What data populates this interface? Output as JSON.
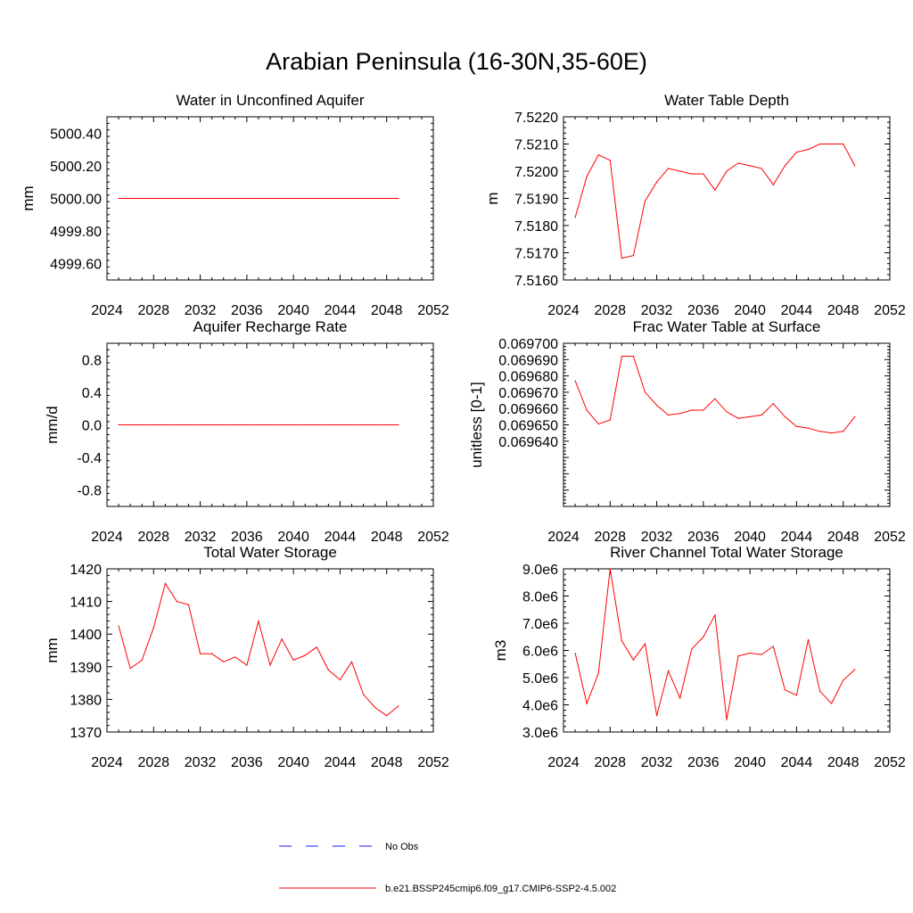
{
  "title": "Arabian Peninsula (16-30N,35-60E)",
  "legend": {
    "entries": [
      {
        "label": "No Obs",
        "color": "#1a1aff",
        "dash": true
      },
      {
        "label": "b.e21.BSSP245cmip6.f09_g17.CMIP6-SSP2-4.5.002",
        "color": "#ff0000",
        "dash": false
      }
    ]
  },
  "chart_data": [
    {
      "type": "line",
      "title": "Water in Unconfined Aquifer",
      "ylabel": "mm",
      "xlim": [
        2024,
        2052
      ],
      "ylim": [
        4999.5,
        5000.5
      ],
      "x_ticks": [
        "2024",
        "2028",
        "2032",
        "2036",
        "2040",
        "2044",
        "2048",
        "2052"
      ],
      "y_ticks": [
        "4999.60",
        "4999.80",
        "5000.00",
        "5000.20",
        "5000.40"
      ],
      "series": [
        {
          "color": "#ff0000",
          "x": [
            2025,
            2026,
            2027,
            2028,
            2029,
            2030,
            2031,
            2032,
            2033,
            2034,
            2035,
            2036,
            2037,
            2038,
            2039,
            2040,
            2041,
            2042,
            2043,
            2044,
            2045,
            2046,
            2047,
            2048,
            2049
          ],
          "values": [
            5000,
            5000,
            5000,
            5000,
            5000,
            5000,
            5000,
            5000,
            5000,
            5000,
            5000,
            5000,
            5000,
            5000,
            5000,
            5000,
            5000,
            5000,
            5000,
            5000,
            5000,
            5000,
            5000,
            5000,
            5000
          ]
        }
      ]
    },
    {
      "type": "line",
      "title": "Water Table Depth",
      "ylabel": "m",
      "xlim": [
        2024,
        2052
      ],
      "ylim": [
        7.516,
        7.522
      ],
      "x_ticks": [
        "2024",
        "2028",
        "2032",
        "2036",
        "2040",
        "2044",
        "2048",
        "2052"
      ],
      "y_ticks": [
        "7.5160",
        "7.5170",
        "7.5180",
        "7.5190",
        "7.5200",
        "7.5210",
        "7.5220"
      ],
      "series": [
        {
          "color": "#ff0000",
          "x": [
            2025,
            2026,
            2027,
            2028,
            2029,
            2030,
            2031,
            2032,
            2033,
            2034,
            2035,
            2036,
            2037,
            2038,
            2039,
            2040,
            2041,
            2042,
            2043,
            2044,
            2045,
            2046,
            2047,
            2048,
            2049
          ],
          "values": [
            7.5183,
            7.5198,
            7.5206,
            7.5204,
            7.5168,
            7.5169,
            7.5189,
            7.5196,
            7.5201,
            7.52,
            7.5199,
            7.5199,
            7.5193,
            7.52,
            7.5203,
            7.5202,
            7.5201,
            7.5195,
            7.5202,
            7.5207,
            7.5208,
            7.521,
            7.521,
            7.521,
            7.5202
          ]
        }
      ]
    },
    {
      "type": "line",
      "title": "Aquifer Recharge Rate",
      "ylabel": "mm/d",
      "xlim": [
        2024,
        2052
      ],
      "ylim": [
        -1,
        1
      ],
      "x_ticks": [
        "2024",
        "2028",
        "2032",
        "2036",
        "2040",
        "2044",
        "2048",
        "2052"
      ],
      "y_ticks": [
        "-0.8",
        "-0.4",
        "0.0",
        "0.4",
        "0.8"
      ],
      "series": [
        {
          "color": "#ff0000",
          "x": [
            2025,
            2026,
            2027,
            2028,
            2029,
            2030,
            2031,
            2032,
            2033,
            2034,
            2035,
            2036,
            2037,
            2038,
            2039,
            2040,
            2041,
            2042,
            2043,
            2044,
            2045,
            2046,
            2047,
            2048,
            2049
          ],
          "values": [
            0,
            0,
            0,
            0,
            0,
            0,
            0,
            0,
            0,
            0,
            0,
            0,
            0,
            0,
            0,
            0,
            0,
            0,
            0,
            0,
            0,
            0,
            0,
            0,
            0
          ]
        }
      ]
    },
    {
      "type": "line",
      "title": "Frac Water Table at Surface",
      "ylabel": "unitless [0-1]",
      "xlim": [
        2024,
        2052
      ],
      "ylim": [
        0.0696,
        0.0697
      ],
      "x_ticks": [
        "2024",
        "2028",
        "2032",
        "2036",
        "2040",
        "2044",
        "2048",
        "2052"
      ],
      "y_ticks": [
        "0.069640",
        "0.069650",
        "0.069660",
        "0.069670",
        "0.069680",
        "0.069690",
        "0.069700"
      ],
      "series": [
        {
          "color": "#ff0000",
          "x": [
            2025,
            2026,
            2027,
            2028,
            2029,
            2030,
            2031,
            2032,
            2033,
            2034,
            2035,
            2036,
            2037,
            2038,
            2039,
            2040,
            2041,
            2042,
            2043,
            2044,
            2045,
            2046,
            2047,
            2048,
            2049
          ],
          "values": [
            0.069677,
            0.069659,
            0.0696505,
            0.069653,
            0.069692,
            0.069692,
            0.06967,
            0.069662,
            0.069656,
            0.069657,
            0.069659,
            0.069659,
            0.069666,
            0.069658,
            0.069654,
            0.069655,
            0.069656,
            0.069663,
            0.069655,
            0.069649,
            0.069648,
            0.069646,
            0.069645,
            0.069646,
            0.069655
          ]
        }
      ]
    },
    {
      "type": "line",
      "title": "Total Water Storage",
      "ylabel": "mm",
      "xlim": [
        2024,
        2052
      ],
      "ylim": [
        1370,
        1420
      ],
      "x_ticks": [
        "2024",
        "2028",
        "2032",
        "2036",
        "2040",
        "2044",
        "2048",
        "2052"
      ],
      "y_ticks": [
        "1370",
        "1380",
        "1390",
        "1400",
        "1410",
        "1420"
      ],
      "series": [
        {
          "color": "#ff0000",
          "x": [
            2025,
            2026,
            2027,
            2028,
            2029,
            2030,
            2031,
            2032,
            2033,
            2034,
            2035,
            2036,
            2037,
            2038,
            2039,
            2040,
            2041,
            2042,
            2043,
            2044,
            2045,
            2046,
            2047,
            2048,
            2049
          ],
          "values": [
            1402.5,
            1389.5,
            1392,
            1402,
            1415.5,
            1410,
            1409,
            1394,
            1394,
            1391.5,
            1393,
            1390.5,
            1404,
            1390.5,
            1398.5,
            1392,
            1393.5,
            1396,
            1389,
            1386,
            1391.5,
            1381.5,
            1377.5,
            1375,
            1378
          ]
        }
      ]
    },
    {
      "type": "line",
      "title": "River Channel Total Water Storage",
      "ylabel": "m3",
      "xlim": [
        2024,
        2052
      ],
      "ylim": [
        3000000,
        9000000
      ],
      "x_ticks": [
        "2024",
        "2028",
        "2032",
        "2036",
        "2040",
        "2044",
        "2048",
        "2052"
      ],
      "y_ticks": [
        "3.0e6",
        "4.0e6",
        "5.0e6",
        "6.0e6",
        "7.0e6",
        "8.0e6",
        "9.0e6"
      ],
      "series": [
        {
          "color": "#ff0000",
          "x": [
            2025,
            2026,
            2027,
            2028,
            2029,
            2030,
            2031,
            2032,
            2033,
            2034,
            2035,
            2036,
            2037,
            2038,
            2039,
            2040,
            2041,
            2042,
            2043,
            2044,
            2045,
            2046,
            2047,
            2048,
            2049
          ],
          "values": [
            5900000,
            4050000,
            5150000,
            9000000,
            6350000,
            5650000,
            6250000,
            3600000,
            5250000,
            4250000,
            6050000,
            6500000,
            7300000,
            3450000,
            5800000,
            5900000,
            5850000,
            6150000,
            4550000,
            4350000,
            6400000,
            4500000,
            4050000,
            4900000,
            5300000
          ]
        }
      ]
    }
  ]
}
